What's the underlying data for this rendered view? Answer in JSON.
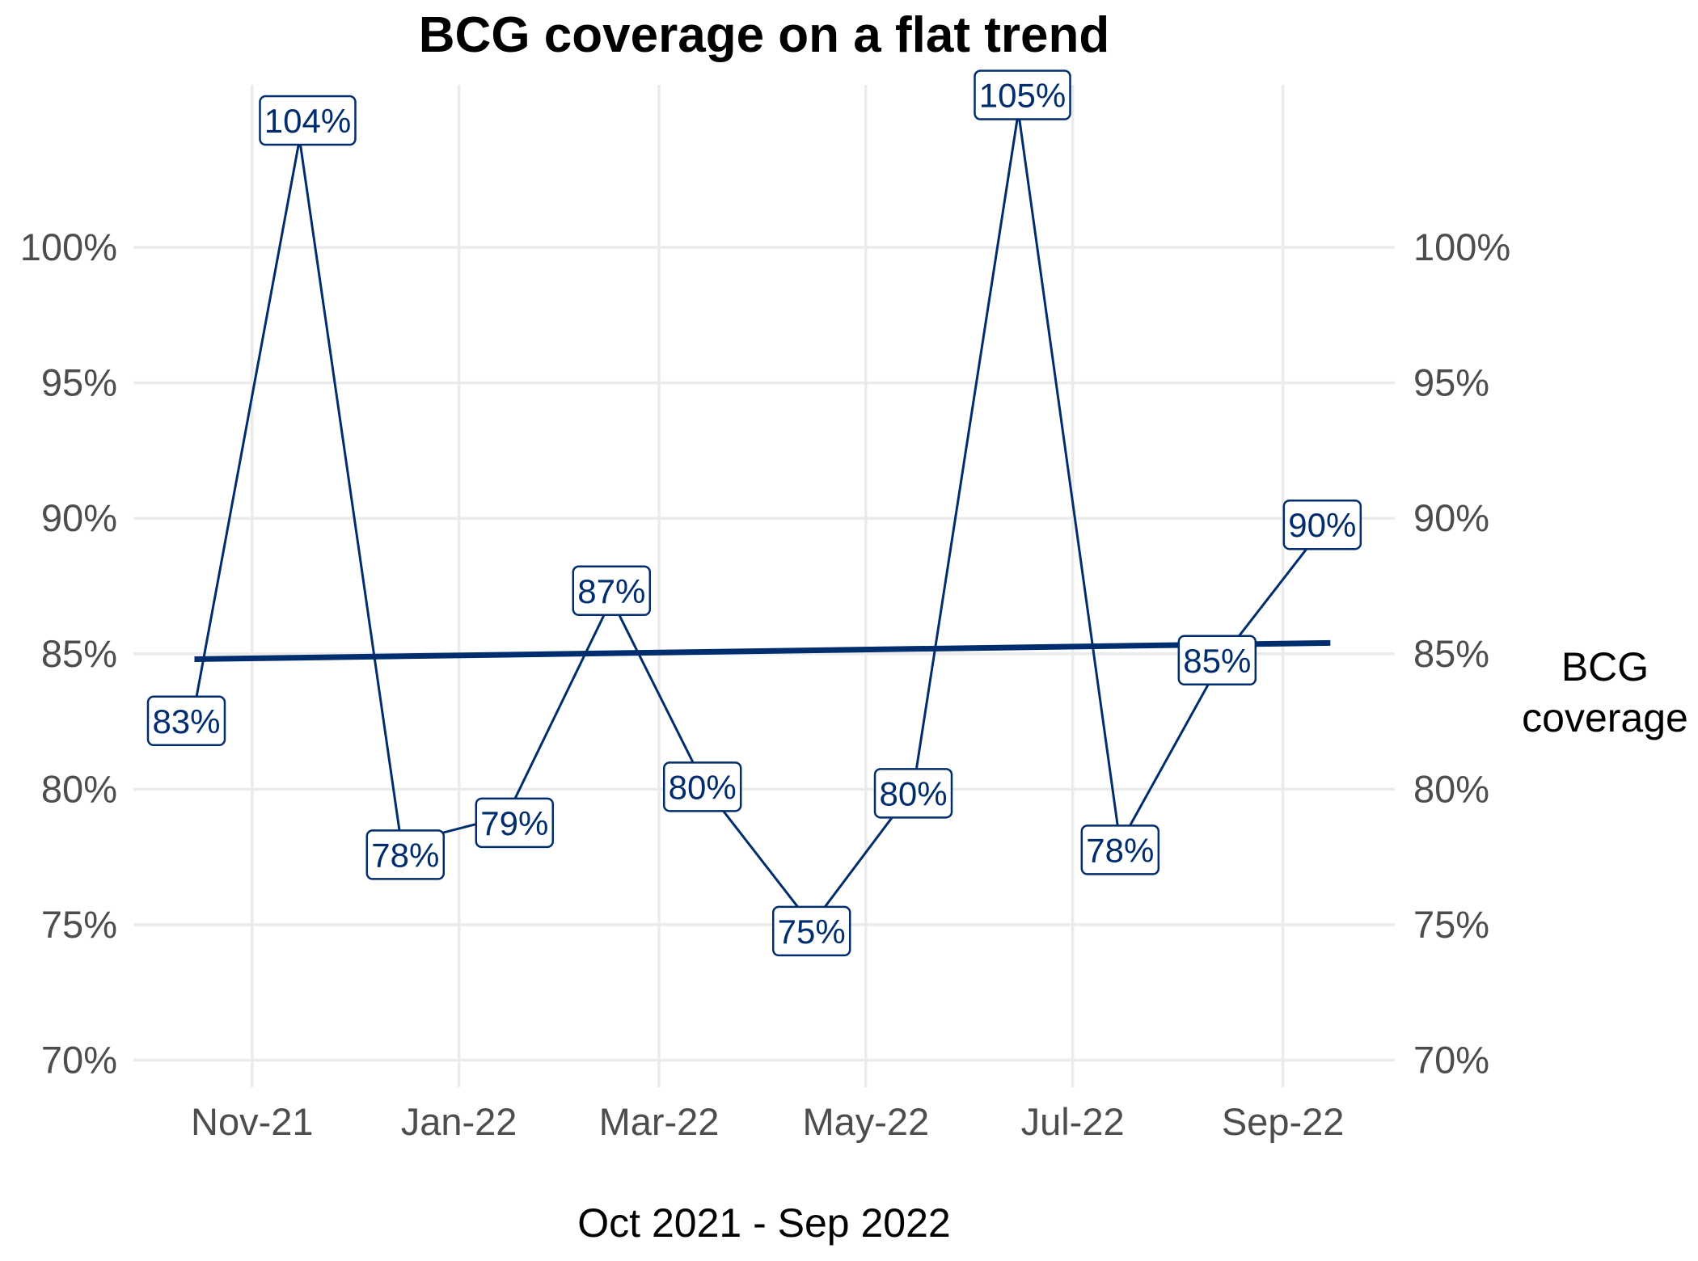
{
  "chart_data": {
    "type": "line",
    "title": "BCG coverage on a flat trend",
    "xlabel": "Oct 2021 - Sep 2022",
    "ylabel": "",
    "x": [
      "2021-10-15",
      "2021-11-15",
      "2021-12-15",
      "2022-01-15",
      "2022-02-15",
      "2022-03-15",
      "2022-04-15",
      "2022-05-15",
      "2022-06-15",
      "2022-07-15",
      "2022-08-15",
      "2022-09-15"
    ],
    "x_ticks": [
      "2021-11-01",
      "2022-01-01",
      "2022-03-01",
      "2022-05-01",
      "2022-07-01",
      "2022-09-01"
    ],
    "x_tick_labels": [
      "Nov-21",
      "Jan-22",
      "Mar-22",
      "May-22",
      "Jul-22",
      "Sep-22"
    ],
    "ylim": [
      69,
      106
    ],
    "y_ticks": [
      70,
      75,
      80,
      85,
      90,
      95,
      100
    ],
    "y_tick_labels": [
      "70%",
      "75%",
      "80%",
      "85%",
      "90%",
      "95%",
      "100%"
    ],
    "secondary_y_axis": true,
    "grid": true,
    "legend_position": "right",
    "legend_text": [
      "BCG",
      "coverage"
    ],
    "series": [
      {
        "name": "BCG coverage",
        "values": [
          83,
          104,
          78,
          79,
          87,
          80,
          75,
          80,
          105,
          78,
          85,
          90
        ],
        "labels": [
          "83%",
          "104%",
          "78%",
          "79%",
          "87%",
          "80%",
          "75%",
          "80%",
          "105%",
          "78%",
          "85%",
          "90%"
        ]
      },
      {
        "name": "Trend",
        "kind": "trend",
        "x": [
          "2021-10-15",
          "2022-09-15"
        ],
        "values": [
          84.8,
          85.4
        ]
      }
    ],
    "colors": {
      "line": "#002d6e",
      "trend": "#002d6e",
      "grid": "#ebebeb",
      "tick_text": "#4d4d4d"
    }
  }
}
